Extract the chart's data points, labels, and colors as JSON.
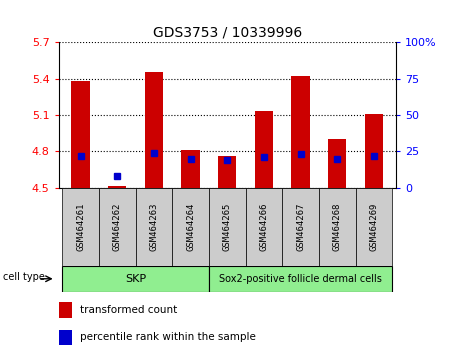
{
  "title": "GDS3753 / 10339996",
  "samples": [
    "GSM464261",
    "GSM464262",
    "GSM464263",
    "GSM464264",
    "GSM464265",
    "GSM464266",
    "GSM464267",
    "GSM464268",
    "GSM464269"
  ],
  "transformed_counts": [
    5.38,
    4.51,
    5.46,
    4.81,
    4.76,
    5.13,
    5.42,
    4.9,
    5.11
  ],
  "percentile_ranks": [
    22,
    8,
    24,
    20,
    19,
    21,
    23,
    20,
    22
  ],
  "ylim_left": [
    4.5,
    5.7
  ],
  "ylim_right": [
    0,
    100
  ],
  "yticks_left": [
    4.5,
    4.8,
    5.1,
    5.4,
    5.7
  ],
  "ytick_labels_left": [
    "4.5",
    "4.8",
    "5.1",
    "5.4",
    "5.7"
  ],
  "yticks_right": [
    0,
    25,
    50,
    75,
    100
  ],
  "ytick_labels_right": [
    "0",
    "25",
    "50",
    "75",
    "100%"
  ],
  "group1_label": "SKP",
  "group2_label": "Sox2-positive follicle dermal cells",
  "group1_count": 4,
  "group2_count": 5,
  "cell_group_color": "#90EE90",
  "bar_color": "#CC0000",
  "dot_color": "#0000CC",
  "bar_width": 0.5,
  "sample_box_color": "#cccccc",
  "legend_items": [
    {
      "label": "transformed count",
      "color": "#CC0000"
    },
    {
      "label": "percentile rank within the sample",
      "color": "#0000CC"
    }
  ],
  "cell_type_label": "cell type"
}
